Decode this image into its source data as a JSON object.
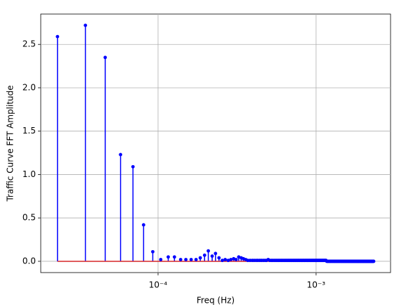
{
  "chart_data": {
    "type": "stem",
    "xlabel": "Freq (Hz)",
    "ylabel": "Traffic Curve FFT Amplitude",
    "xscale": "log",
    "grid": true,
    "color": "#0000ff",
    "baseline_color": "#d62728",
    "xlim": [
      1.81e-05,
      0.00296
    ],
    "ylim": [
      -0.13,
      2.85
    ],
    "xticks": [
      {
        "value": 0.0001,
        "label": "10⁻⁴"
      },
      {
        "value": 0.001,
        "label": "10⁻³"
      }
    ],
    "yticks": [
      {
        "value": 0,
        "label": "0.0"
      },
      {
        "value": 0.5,
        "label": "0.5"
      },
      {
        "value": 1,
        "label": "1.0"
      },
      {
        "value": 1.5,
        "label": "1.5"
      },
      {
        "value": 2,
        "label": "2.0"
      },
      {
        "value": 2.5,
        "label": "2.5"
      }
    ],
    "x": [
      2.31e-05,
      3.47e-05,
      4.63e-05,
      5.79e-05,
      6.94e-05,
      8.1e-05,
      9.26e-05,
      0.000104,
      0.000116,
      0.000127,
      0.000139,
      0.00015,
      0.000162,
      0.000174,
      0.000185,
      0.000197,
      0.000208,
      0.00022,
      0.000231,
      0.000243,
      0.000255,
      0.000266,
      0.000278,
      0.000289,
      0.000301,
      0.000312,
      0.000324,
      0.000336,
      0.000347,
      0.000359,
      0.00037,
      0.000382,
      0.000394,
      0.000405,
      0.000417,
      0.000428,
      0.00044,
      0.000451,
      0.000463,
      0.000475,
      0.000486,
      0.000498,
      0.000509,
      0.000521,
      0.000532,
      0.000544,
      0.000556,
      0.000567,
      0.000579,
      0.00059,
      0.000602,
      0.000613,
      0.000625,
      0.000637,
      0.000648,
      0.00066,
      0.000671,
      0.000683,
      0.000694,
      0.000706,
      0.000718,
      0.000729,
      0.000741,
      0.000752,
      0.000764,
      0.000775,
      0.000787,
      0.000799,
      0.00081,
      0.000822,
      0.000833,
      0.000845,
      0.000856,
      0.000868,
      0.00088,
      0.000891,
      0.000903,
      0.000914,
      0.000926,
      0.000938,
      0.000949,
      0.000961,
      0.000972,
      0.000984,
      0.000995,
      0.001007,
      0.001019,
      0.00103,
      0.001042,
      0.001053,
      0.001065,
      0.001076,
      0.001088,
      0.0011,
      0.001111,
      0.001123,
      0.001134,
      0.001146,
      0.001157,
      0.001169,
      0.001181,
      0.001192,
      0.001204,
      0.001215,
      0.001227,
      0.001238,
      0.00125,
      0.001262,
      0.001273,
      0.001285,
      0.001296,
      0.001308,
      0.001319,
      0.001331,
      0.001343,
      0.001354,
      0.001366,
      0.001377,
      0.001389,
      0.0014,
      0.001412,
      0.001424,
      0.001435,
      0.001447,
      0.001458,
      0.00147,
      0.001481,
      0.001493,
      0.001505,
      0.001516,
      0.001528,
      0.001539,
      0.001551,
      0.001562,
      0.001574,
      0.001586,
      0.001597,
      0.001609,
      0.00162,
      0.001632,
      0.001644,
      0.001655,
      0.001667,
      0.001678,
      0.00169,
      0.001701,
      0.001713,
      0.001725,
      0.001736,
      0.001748,
      0.001759,
      0.001771,
      0.001782,
      0.001794,
      0.001806,
      0.001817,
      0.001829,
      0.00184,
      0.001852,
      0.001863,
      0.001875,
      0.001887,
      0.001898,
      0.00191,
      0.001921,
      0.001933,
      0.001944,
      0.001956,
      0.001968,
      0.001979,
      0.001991,
      0.002002,
      0.002014,
      0.002025,
      0.002037,
      0.002049,
      0.00206,
      0.002072,
      0.002083,
      0.002095,
      0.002106,
      0.002118,
      0.00213,
      0.002141,
      0.002153,
      0.002164,
      0.002176,
      0.002188,
      0.002199,
      0.002211,
      0.002222,
      0.002234,
      0.002245,
      0.002257,
      0.002269,
      0.00228,
      0.002292,
      0.002303,
      0.002315
    ],
    "values": [
      2.59,
      2.72,
      2.35,
      1.23,
      1.09,
      0.42,
      0.11,
      0.02,
      0.05,
      0.05,
      0.02,
      0.02,
      0.02,
      0.02,
      0.04,
      0.07,
      0.12,
      0.06,
      0.09,
      0.04,
      0.01,
      0.02,
      0.01,
      0.02,
      0.03,
      0.02,
      0.05,
      0.04,
      0.03,
      0.02,
      0.01,
      0.01,
      0.01,
      0.01,
      0.01,
      0.01,
      0.01,
      0.01,
      0.01,
      0.01,
      0.01,
      0.02,
      0.01,
      0.01,
      0.01,
      0.01,
      0.01,
      0.01,
      0.01,
      0.01,
      0.01,
      0.01,
      0.01,
      0.01,
      0.01,
      0.01,
      0.01,
      0.01,
      0.01,
      0.01,
      0.01,
      0.01,
      0.01,
      0.01,
      0.01,
      0.01,
      0.01,
      0.01,
      0.01,
      0.01,
      0.01,
      0.01,
      0.01,
      0.01,
      0.01,
      0.01,
      0.01,
      0.01,
      0.01,
      0.01,
      0.01,
      0.01,
      0.01,
      0.01,
      0.01,
      0.01,
      0.01,
      0.01,
      0.01,
      0.01,
      0.01,
      0.01,
      0.01,
      0.01,
      0.01,
      0.01,
      0.01,
      0.01,
      0.01,
      0,
      0,
      0,
      0,
      0,
      0,
      0,
      0,
      0,
      0,
      0,
      0,
      0,
      0,
      0,
      0,
      0,
      0,
      0,
      0,
      0,
      0,
      0,
      0,
      0,
      0,
      0,
      0,
      0,
      0,
      0,
      0,
      0,
      0,
      0,
      0,
      0,
      0,
      0,
      0,
      0,
      0,
      0,
      0,
      0,
      0,
      0,
      0,
      0,
      0,
      0,
      0,
      0,
      0,
      0,
      0,
      0,
      0,
      0,
      0,
      0,
      0,
      0,
      0,
      0,
      0,
      0,
      0,
      0,
      0,
      0,
      0,
      0,
      0,
      0,
      0,
      0,
      0,
      0,
      0,
      0,
      0,
      0,
      0,
      0,
      0,
      0,
      0,
      0,
      0,
      0,
      0,
      0,
      0,
      0,
      0,
      0,
      0,
      0,
      0
    ]
  }
}
